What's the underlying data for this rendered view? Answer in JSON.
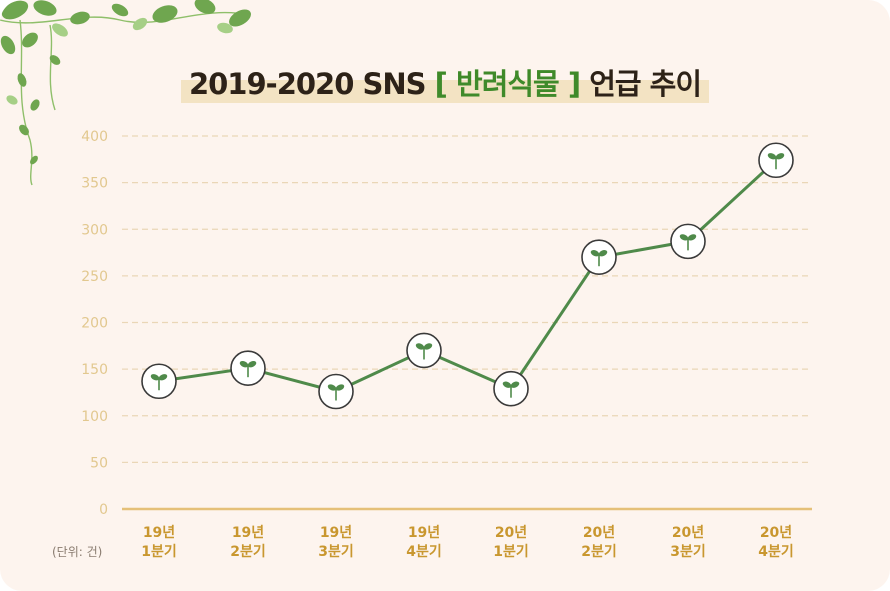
{
  "title": {
    "prefix": "2019-2020 SNS ",
    "bracket_open": "[ ",
    "highlight": "반려식물",
    "bracket_close": " ]",
    "suffix": " 언급 추이"
  },
  "unit_label": "(단위: 건)",
  "colors": {
    "background": "#fdf4ee",
    "line": "#4f8a4a",
    "axis": "#e5c078",
    "tick_label": "#e2c88f",
    "x_label": "#c9972f",
    "grid": "#ead6b6",
    "sprout": "#4f8a4a"
  },
  "chart_data": {
    "type": "line",
    "title": "2019-2020 SNS [ 반려식물 ] 언급 추이",
    "xlabel": "",
    "ylabel": "",
    "ylim": [
      0,
      400
    ],
    "yticks": [
      0,
      50,
      100,
      150,
      200,
      250,
      300,
      350,
      400
    ],
    "grid": true,
    "categories": [
      [
        "19년",
        "1분기"
      ],
      [
        "19년",
        "2분기"
      ],
      [
        "19년",
        "3분기"
      ],
      [
        "19년",
        "4분기"
      ],
      [
        "20년",
        "1분기"
      ],
      [
        "20년",
        "2분기"
      ],
      [
        "20년",
        "3분기"
      ],
      [
        "20년",
        "4분기"
      ]
    ],
    "values": [
      137,
      151,
      126,
      170,
      129,
      270,
      287,
      374
    ]
  }
}
